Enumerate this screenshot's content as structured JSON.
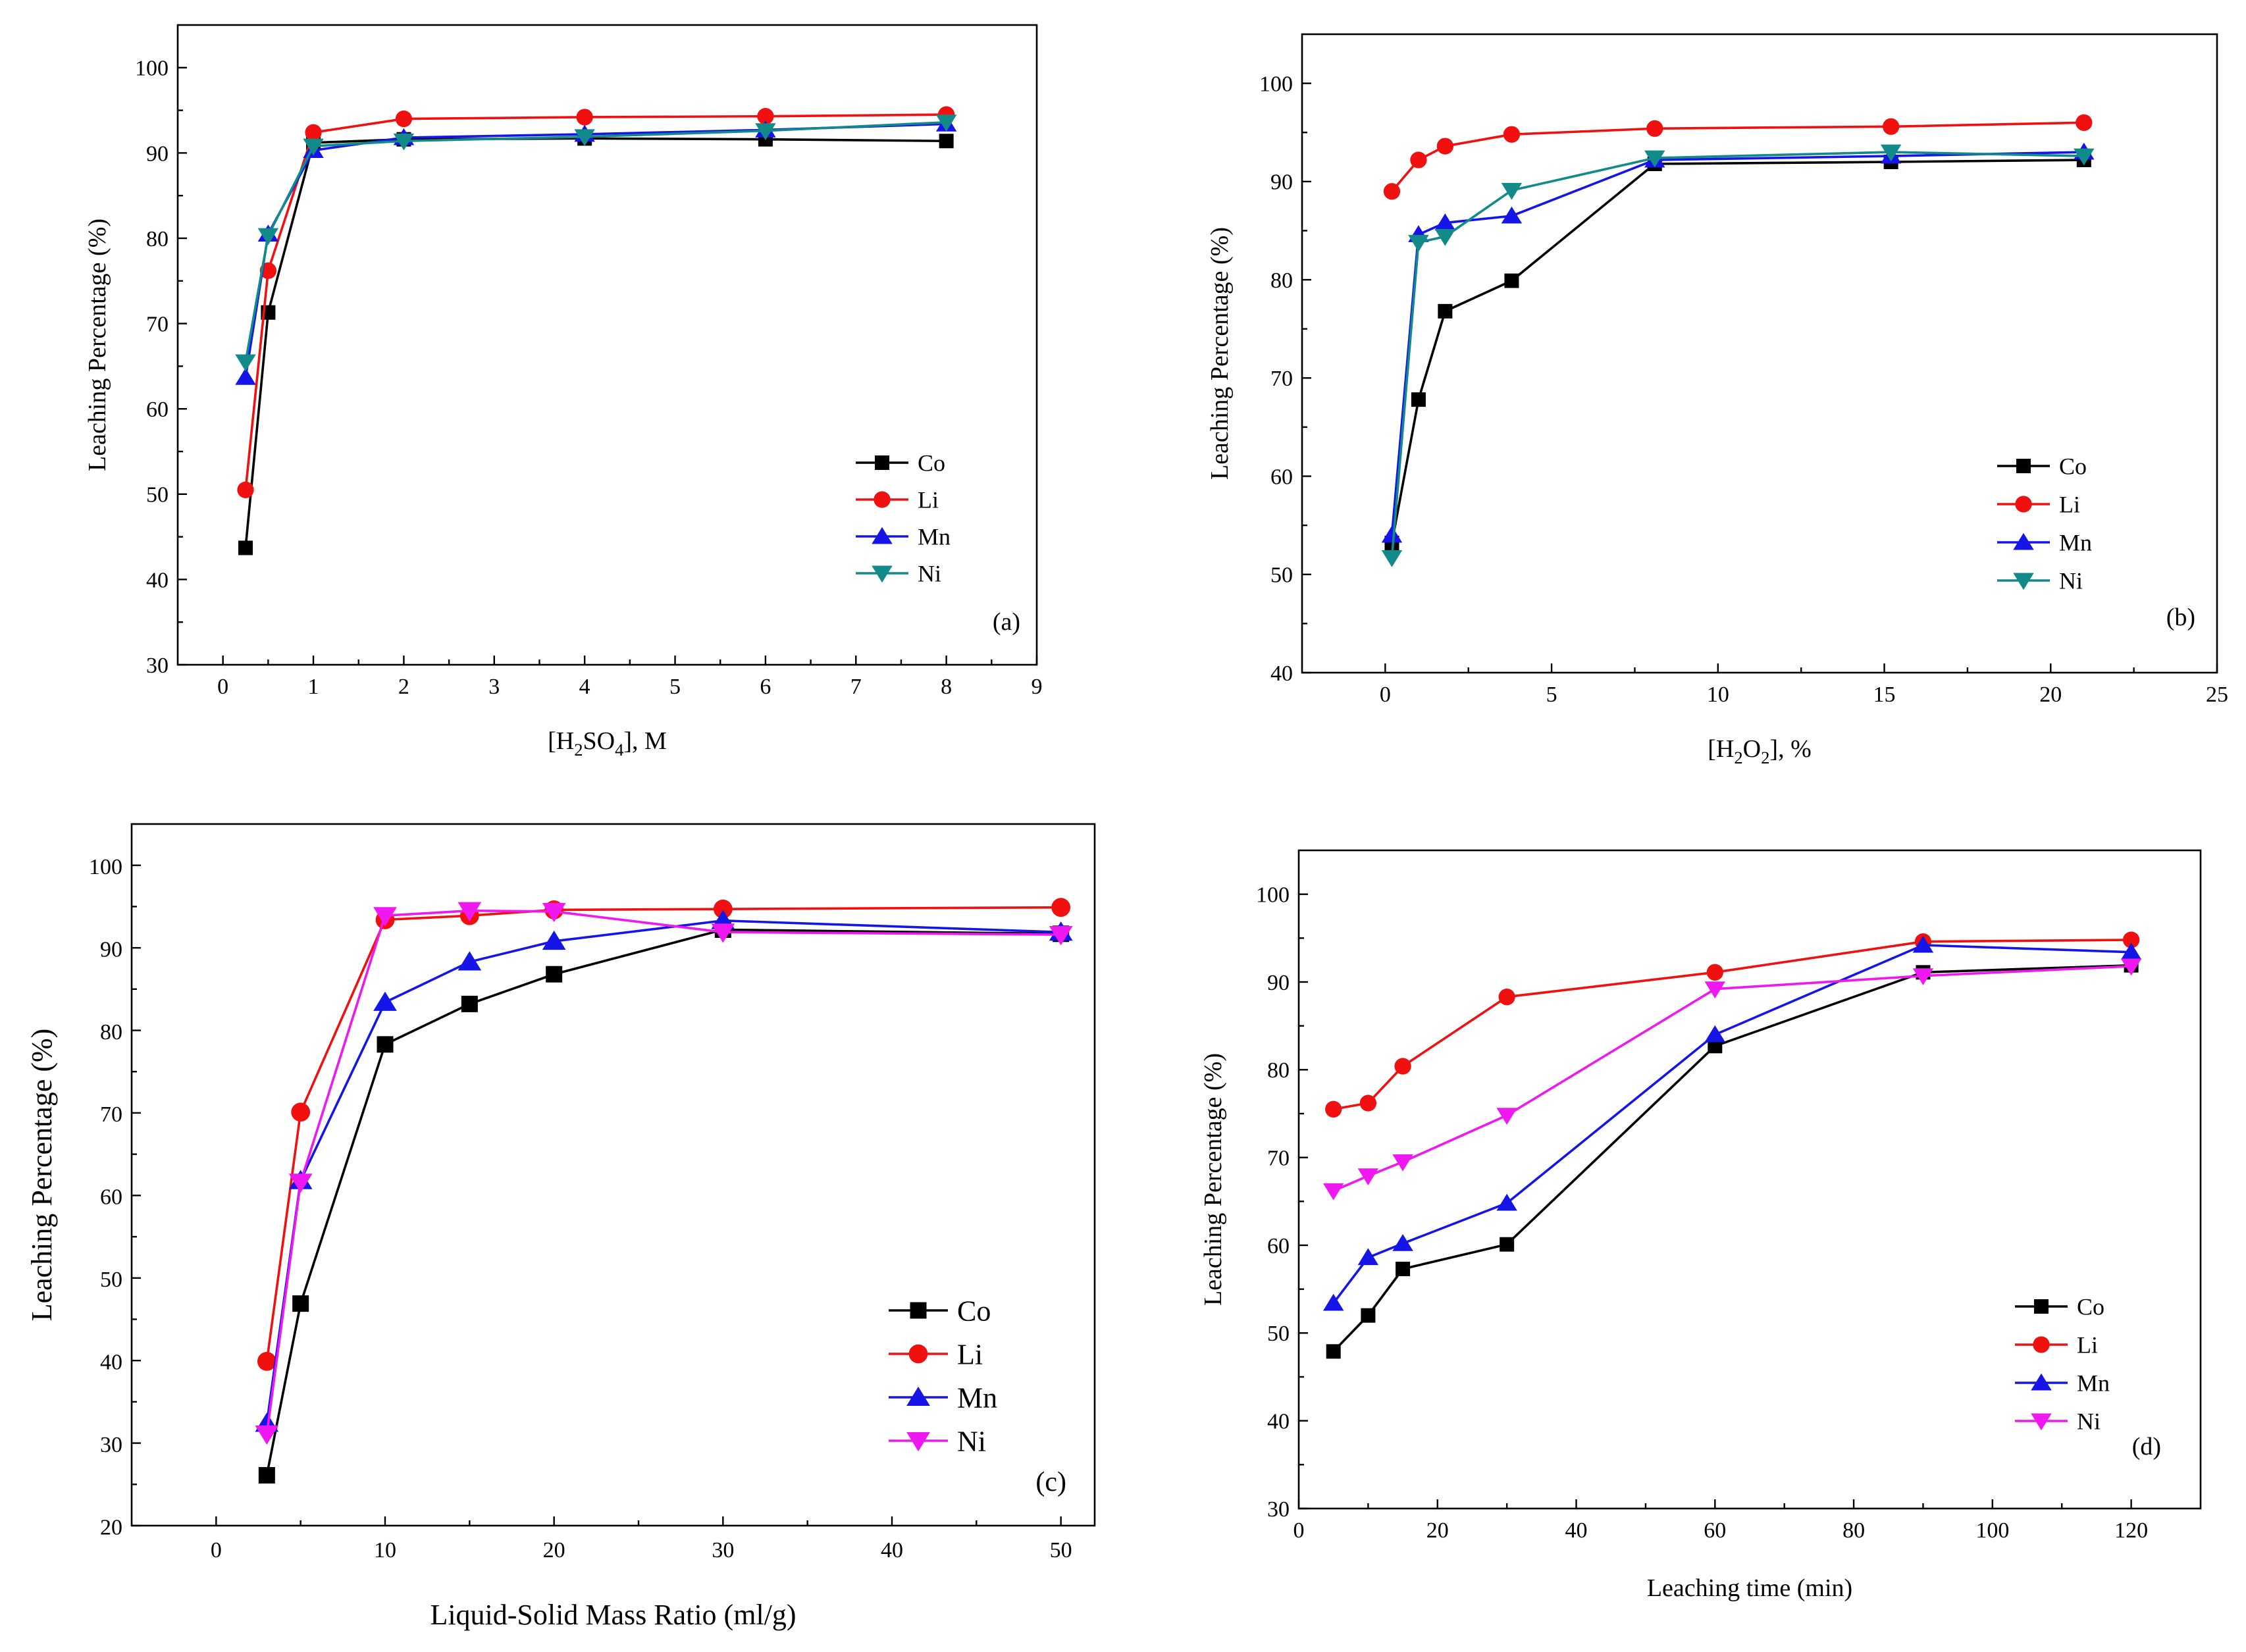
{
  "chart_data": [
    {
      "type": "line",
      "panel": "(a)",
      "xlabel": "[H2SO4], M",
      "xlabel_parts": {
        "pre": "[H",
        "sub1": "2",
        "mid": "SO",
        "sub2": "4",
        "post": "], M"
      },
      "ylabel": "Leaching Percentage (%)",
      "xlim": [
        -0.5,
        9
      ],
      "ylim": [
        30,
        105
      ],
      "xticks": [
        0,
        1,
        2,
        3,
        4,
        5,
        6,
        7,
        8,
        9
      ],
      "yticks": [
        30,
        40,
        50,
        60,
        70,
        80,
        90,
        100
      ],
      "legend_position": "bottom-right",
      "series": [
        {
          "name": "Co",
          "marker": "square",
          "x": [
            0.25,
            0.5,
            1,
            2,
            4,
            6,
            8
          ],
          "values": [
            43.7,
            71.3,
            91.2,
            91.6,
            91.7,
            91.6,
            91.4
          ]
        },
        {
          "name": "Li",
          "marker": "circle",
          "x": [
            0.25,
            0.5,
            1,
            2,
            4,
            6,
            8
          ],
          "values": [
            50.5,
            76.2,
            92.4,
            94.0,
            94.2,
            94.3,
            94.5
          ]
        },
        {
          "name": "Mn",
          "marker": "triangle-up",
          "x": [
            0.25,
            0.5,
            1,
            2,
            4,
            6,
            8
          ],
          "values": [
            63.7,
            80.5,
            90.3,
            91.8,
            92.2,
            92.7,
            93.4
          ]
        },
        {
          "name": "Ni",
          "marker": "triangle-down",
          "x": [
            0.25,
            0.5,
            1,
            2,
            4,
            6,
            8
          ],
          "values": [
            65.5,
            80.3,
            90.8,
            91.4,
            91.9,
            92.6,
            93.6
          ]
        }
      ]
    },
    {
      "type": "line",
      "panel": "(b)",
      "xlabel": "[H2O2], %",
      "xlabel_parts": {
        "pre": "[H",
        "sub1": "2",
        "mid": "O",
        "sub2": "2",
        "post": "], %"
      },
      "ylabel": "Leaching Percentage (%)",
      "xlim": [
        -2.5,
        25
      ],
      "ylim": [
        40,
        105
      ],
      "xticks": [
        0,
        5,
        10,
        15,
        20,
        25
      ],
      "yticks": [
        40,
        50,
        60,
        70,
        80,
        90,
        100
      ],
      "legend_position": "bottom-right",
      "series": [
        {
          "name": "Co",
          "marker": "square",
          "x": [
            0.2,
            1.0,
            1.8,
            3.8,
            8.1,
            15.2,
            21.0
          ],
          "values": [
            53.2,
            67.8,
            76.8,
            79.9,
            91.8,
            92.0,
            92.2
          ]
        },
        {
          "name": "Li",
          "marker": "circle",
          "x": [
            0.2,
            1.0,
            1.8,
            3.8,
            8.1,
            15.2,
            21.0
          ],
          "values": [
            89.0,
            92.2,
            93.6,
            94.8,
            95.4,
            95.6,
            96.0
          ]
        },
        {
          "name": "Mn",
          "marker": "triangle-up",
          "x": [
            0.2,
            1.0,
            1.8,
            3.8,
            8.1,
            15.2,
            21.0
          ],
          "values": [
            54.0,
            84.6,
            85.8,
            86.5,
            92.2,
            92.6,
            93.0
          ]
        },
        {
          "name": "Ni",
          "marker": "triangle-down",
          "x": [
            0.2,
            1.0,
            1.8,
            3.8,
            8.1,
            15.2,
            21.0
          ],
          "values": [
            51.7,
            83.8,
            84.4,
            89.1,
            92.4,
            93.0,
            92.6
          ]
        }
      ]
    },
    {
      "type": "line",
      "panel": "(c)",
      "xlabel": "Liquid-Solid Mass Ratio (ml/g)",
      "ylabel": "Leaching Percentage (%)",
      "xlim": [
        -5,
        52
      ],
      "ylim": [
        20,
        105
      ],
      "xticks": [
        0,
        10,
        20,
        30,
        40,
        50
      ],
      "yticks": [
        20,
        30,
        40,
        50,
        60,
        70,
        80,
        90,
        100
      ],
      "legend_position": "bottom-right",
      "series": [
        {
          "name": "Co",
          "marker": "square",
          "x": [
            3,
            5,
            10,
            15,
            20,
            30,
            50
          ],
          "values": [
            26.1,
            46.9,
            78.3,
            83.2,
            86.8,
            92.2,
            91.7
          ]
        },
        {
          "name": "Li",
          "marker": "circle",
          "x": [
            3,
            5,
            10,
            15,
            20,
            30,
            50
          ],
          "values": [
            39.9,
            70.1,
            93.4,
            93.9,
            94.6,
            94.7,
            94.9
          ]
        },
        {
          "name": "Mn",
          "marker": "triangle-up",
          "x": [
            3,
            5,
            10,
            15,
            20,
            30,
            50
          ],
          "values": [
            32.4,
            61.8,
            83.4,
            88.3,
            90.8,
            93.3,
            91.9
          ]
        },
        {
          "name": "Ni",
          "marker": "triangle-down",
          "x": [
            3,
            5,
            10,
            15,
            20,
            30,
            50
          ],
          "values": [
            31.1,
            61.6,
            93.9,
            94.5,
            94.4,
            91.9,
            91.6
          ]
        }
      ]
    },
    {
      "type": "line",
      "panel": "(d)",
      "xlabel": "Leaching time (min)",
      "ylabel": "Leaching Percentage (%)",
      "xlim": [
        0,
        130
      ],
      "ylim": [
        30,
        105
      ],
      "xticks": [
        0,
        20,
        40,
        60,
        80,
        100,
        120
      ],
      "yticks": [
        30,
        40,
        50,
        60,
        70,
        80,
        90,
        100
      ],
      "legend_position": "bottom-right",
      "series": [
        {
          "name": "Co",
          "marker": "square",
          "x": [
            5,
            10,
            15,
            30,
            60,
            90,
            120
          ],
          "values": [
            47.9,
            52.0,
            57.3,
            60.1,
            82.7,
            91.1,
            91.9
          ]
        },
        {
          "name": "Li",
          "marker": "circle",
          "x": [
            5,
            10,
            15,
            30,
            60,
            90,
            120
          ],
          "values": [
            75.5,
            76.2,
            80.4,
            88.3,
            91.1,
            94.6,
            94.8
          ]
        },
        {
          "name": "Mn",
          "marker": "triangle-up",
          "x": [
            5,
            10,
            15,
            30,
            60,
            90,
            120
          ],
          "values": [
            53.4,
            58.6,
            60.2,
            64.8,
            84.0,
            94.2,
            93.4
          ]
        },
        {
          "name": "Ni",
          "marker": "triangle-down",
          "x": [
            5,
            10,
            15,
            30,
            60,
            90,
            120
          ],
          "values": [
            66.2,
            67.9,
            69.5,
            74.8,
            89.2,
            90.7,
            91.8
          ]
        }
      ]
    }
  ],
  "colors": {
    "Co": "#000000",
    "Li": "#f01010",
    "Mn": "#1515e8",
    "Ni_ab": "#128a8a",
    "Ni_cd": "#f018f0",
    "axis": "#000000"
  }
}
